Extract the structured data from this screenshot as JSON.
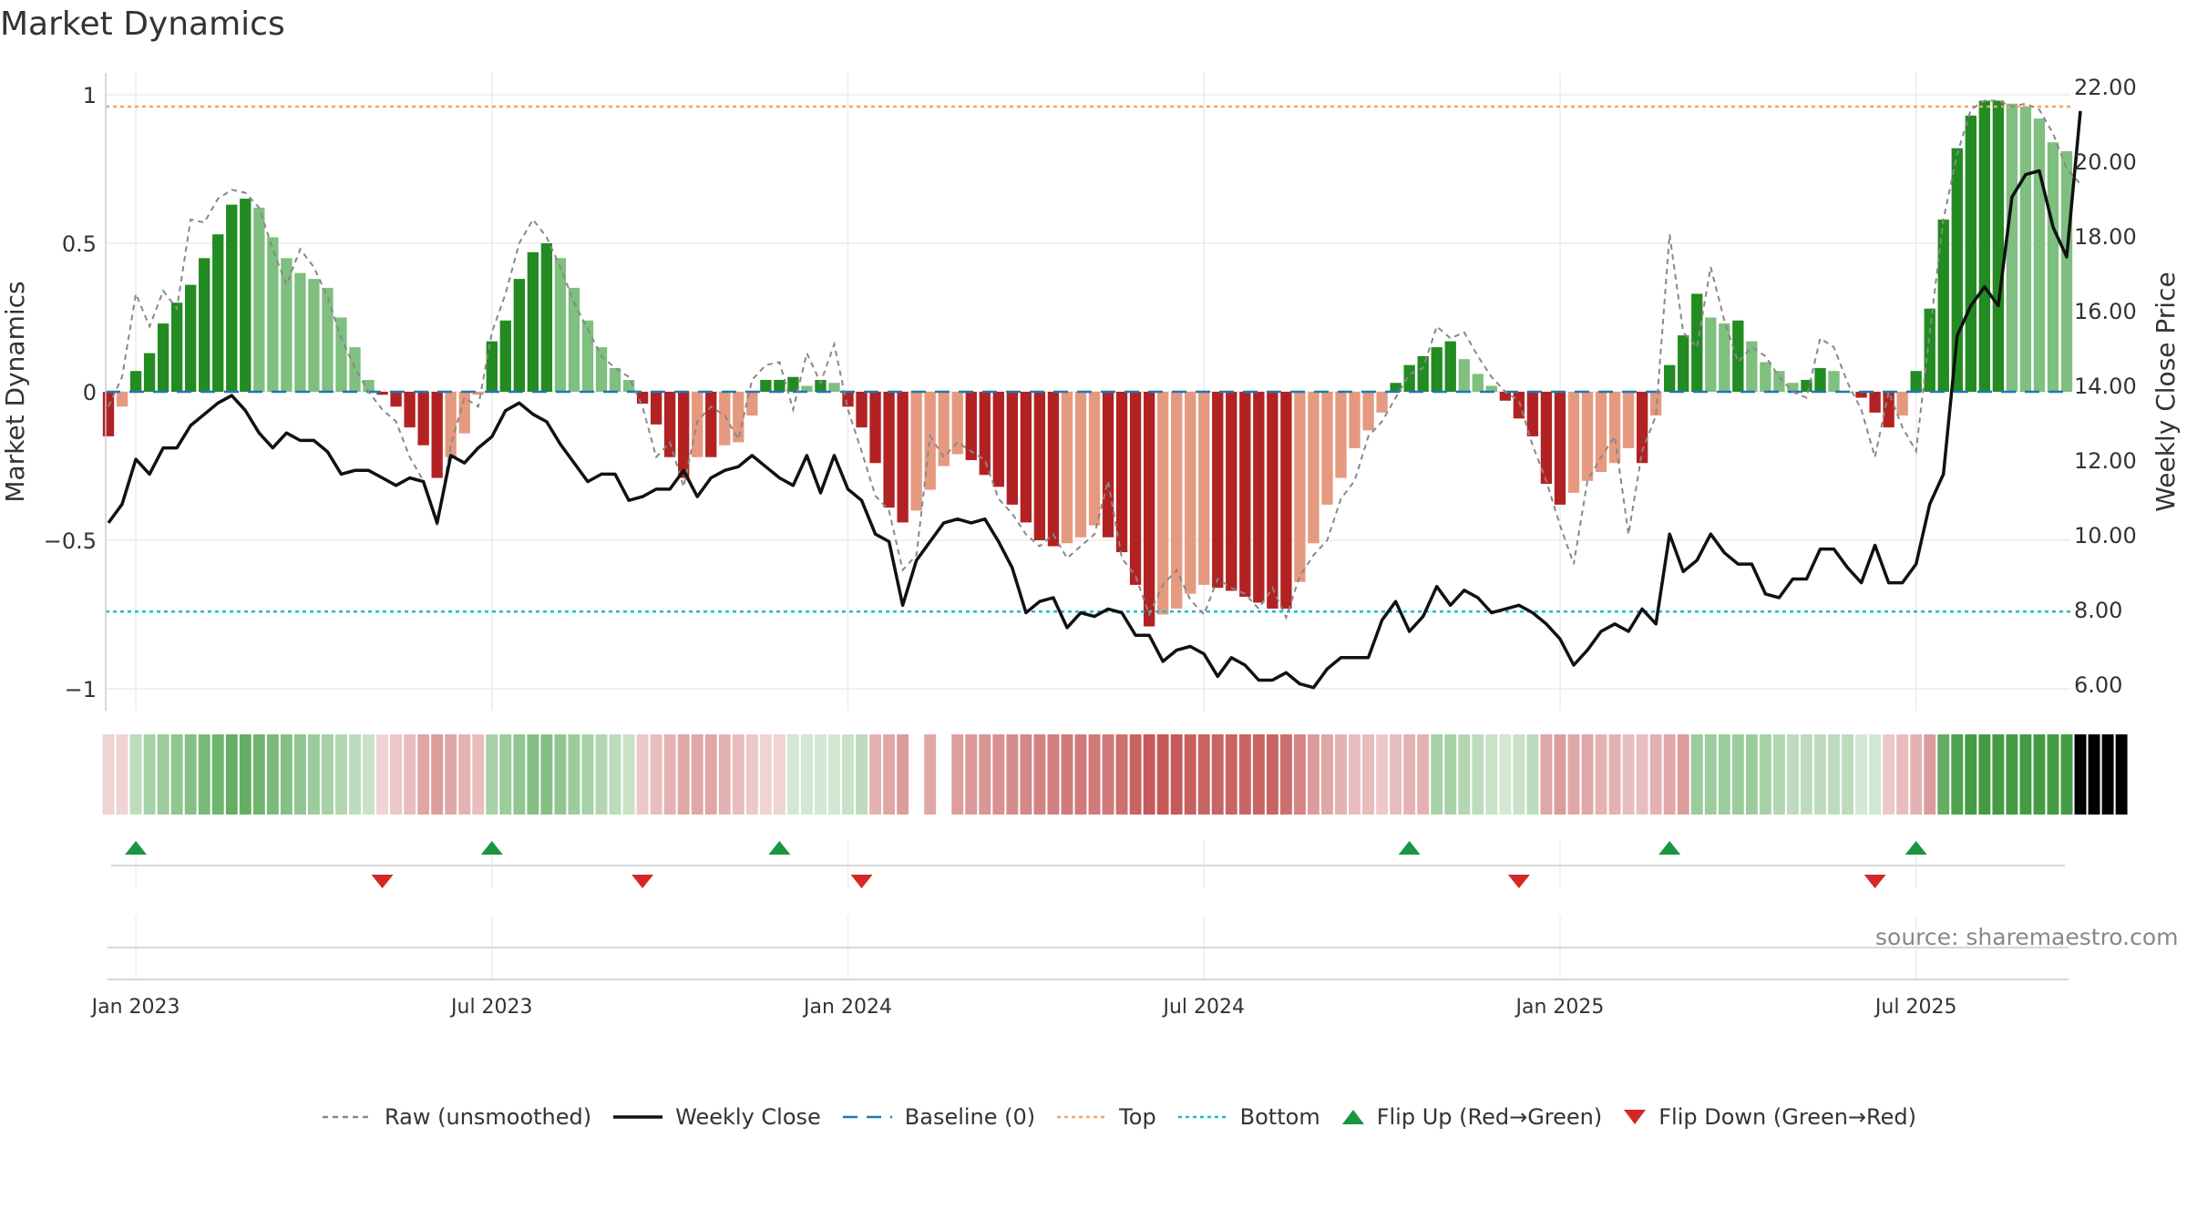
{
  "chart_data": {
    "type": "bar",
    "title": "Market Dynamics",
    "source": "source: sharemaestro.com",
    "ylabel_left": "Market Dynamics",
    "ylabel_right": "Weekly Close Price",
    "left_ticks": [
      {
        "v": 1,
        "label": "1"
      },
      {
        "v": 0.5,
        "label": "0.5"
      },
      {
        "v": 0,
        "label": "0"
      },
      {
        "v": -0.5,
        "label": "−0.5"
      },
      {
        "v": -1,
        "label": "−1"
      }
    ],
    "right_ticks": [
      "22.00",
      "20.00",
      "18.00",
      "16.00",
      "14.00",
      "12.00",
      "10.00",
      "8.00",
      "6.00"
    ],
    "ylim_left": [
      -1.05,
      1.05
    ],
    "ylim_right": [
      5.2,
      22.3
    ],
    "x_ticks": [
      {
        "label": "Jan 2023",
        "week": 2
      },
      {
        "label": "Jul 2023",
        "week": 28
      },
      {
        "label": "Jan 2024",
        "week": 54
      },
      {
        "label": "Jul 2024",
        "week": 80
      },
      {
        "label": "Jan 2025",
        "week": 106
      },
      {
        "label": "Jul 2025",
        "week": 132
      }
    ],
    "top_level": 0.96,
    "bottom_level": -0.74,
    "baseline": 0,
    "colors": {
      "strong_up": "#228b22",
      "weak_up": "#7fbf7f",
      "strong_down": "#b22222",
      "weak_down": "#e59a80",
      "price": "#111111",
      "raw": "#888888",
      "baseline": "#1f77b4",
      "top": "#f4a460",
      "bottom": "#17becf",
      "flip_up": "#1a9641",
      "flip_down": "#d62728"
    },
    "smoothed": [
      -0.15,
      -0.05,
      0.07,
      0.13,
      0.23,
      0.3,
      0.36,
      0.45,
      0.53,
      0.63,
      0.65,
      0.62,
      0.52,
      0.45,
      0.4,
      0.38,
      0.35,
      0.25,
      0.15,
      0.04,
      -0.01,
      -0.05,
      -0.12,
      -0.18,
      -0.29,
      -0.22,
      -0.14,
      -0.01,
      0.17,
      0.24,
      0.38,
      0.47,
      0.5,
      0.45,
      0.35,
      0.24,
      0.15,
      0.08,
      0.04,
      -0.04,
      -0.11,
      -0.22,
      -0.29,
      -0.22,
      -0.22,
      -0.18,
      -0.17,
      -0.08,
      0.04,
      0.04,
      0.05,
      0.02,
      0.04,
      0.03,
      -0.05,
      -0.12,
      -0.24,
      -0.39,
      -0.44,
      -0.4,
      -0.33,
      -0.25,
      -0.21,
      -0.23,
      -0.28,
      -0.32,
      -0.38,
      -0.44,
      -0.5,
      -0.52,
      -0.51,
      -0.49,
      -0.45,
      -0.49,
      -0.54,
      -0.65,
      -0.79,
      -0.75,
      -0.73,
      -0.68,
      -0.65,
      -0.66,
      -0.67,
      -0.69,
      -0.71,
      -0.73,
      -0.73,
      -0.64,
      -0.51,
      -0.38,
      -0.29,
      -0.19,
      -0.13,
      -0.07,
      0.03,
      0.09,
      0.12,
      0.15,
      0.17,
      0.11,
      0.06,
      0.02,
      -0.03,
      -0.09,
      -0.15,
      -0.31,
      -0.38,
      -0.34,
      -0.3,
      -0.27,
      -0.24,
      -0.19,
      -0.24,
      -0.08,
      0.09,
      0.19,
      0.33,
      0.25,
      0.23,
      0.24,
      0.17,
      0.1,
      0.07,
      0.03,
      0.04,
      0.08,
      0.07,
      0.0,
      -0.02,
      -0.07,
      -0.12,
      -0.08,
      0.07,
      0.28,
      0.58,
      0.82,
      0.93,
      0.98,
      0.98,
      0.97,
      0.96,
      0.92,
      0.84,
      0.81
    ],
    "raw": [
      -0.05,
      0.05,
      0.33,
      0.22,
      0.34,
      0.28,
      0.58,
      0.57,
      0.65,
      0.68,
      0.67,
      0.62,
      0.48,
      0.36,
      0.48,
      0.42,
      0.32,
      0.18,
      0.08,
      0.0,
      -0.06,
      -0.1,
      -0.22,
      -0.3,
      -0.45,
      -0.18,
      -0.02,
      -0.05,
      0.2,
      0.33,
      0.5,
      0.58,
      0.52,
      0.42,
      0.3,
      0.21,
      0.12,
      0.08,
      0.05,
      -0.05,
      -0.22,
      -0.17,
      -0.32,
      -0.1,
      -0.05,
      -0.08,
      -0.16,
      0.04,
      0.09,
      0.1,
      -0.06,
      0.13,
      0.03,
      0.16,
      -0.06,
      -0.2,
      -0.35,
      -0.4,
      -0.6,
      -0.55,
      -0.15,
      -0.22,
      -0.17,
      -0.2,
      -0.23,
      -0.36,
      -0.41,
      -0.48,
      -0.52,
      -0.48,
      -0.56,
      -0.52,
      -0.48,
      -0.3,
      -0.56,
      -0.62,
      -0.75,
      -0.65,
      -0.6,
      -0.7,
      -0.75,
      -0.63,
      -0.66,
      -0.68,
      -0.73,
      -0.66,
      -0.76,
      -0.62,
      -0.55,
      -0.5,
      -0.36,
      -0.3,
      -0.15,
      -0.1,
      -0.02,
      0.06,
      0.08,
      0.22,
      0.18,
      0.2,
      0.12,
      0.05,
      0.0,
      -0.03,
      -0.18,
      -0.3,
      -0.45,
      -0.58,
      -0.3,
      -0.22,
      -0.15,
      -0.48,
      -0.2,
      -0.08,
      0.53,
      0.2,
      0.15,
      0.42,
      0.24,
      0.1,
      0.15,
      0.12,
      0.05,
      0.0,
      -0.02,
      0.18,
      0.15,
      0.03,
      -0.06,
      -0.22,
      0.0,
      -0.12,
      -0.2,
      0.2,
      0.58,
      0.8,
      0.95,
      0.98,
      0.98,
      0.96,
      0.97,
      0.95,
      0.87,
      0.75,
      0.7
    ],
    "price": [
      10.5,
      11.0,
      12.2,
      11.8,
      12.5,
      12.5,
      13.1,
      13.4,
      13.7,
      13.9,
      13.5,
      12.9,
      12.5,
      12.9,
      12.7,
      12.7,
      12.4,
      11.8,
      11.9,
      11.9,
      11.7,
      11.5,
      11.7,
      11.6,
      10.5,
      12.3,
      12.1,
      12.5,
      12.8,
      13.5,
      13.7,
      13.4,
      13.2,
      12.6,
      12.1,
      11.6,
      11.8,
      11.8,
      11.1,
      11.2,
      11.4,
      11.4,
      11.9,
      11.2,
      11.7,
      11.9,
      12.0,
      12.3,
      12.0,
      11.7,
      11.5,
      12.3,
      11.3,
      12.3,
      11.4,
      11.1,
      10.2,
      10.0,
      8.3,
      9.5,
      10.0,
      10.5,
      10.6,
      10.5,
      10.6,
      10.0,
      9.3,
      8.1,
      8.4,
      8.5,
      7.7,
      8.1,
      8.0,
      8.2,
      8.1,
      7.5,
      7.5,
      6.8,
      7.1,
      7.2,
      7.0,
      6.4,
      6.9,
      6.7,
      6.3,
      6.3,
      6.5,
      6.2,
      6.1,
      6.6,
      6.9,
      6.9,
      6.9,
      7.9,
      8.4,
      7.6,
      8.0,
      8.8,
      8.3,
      8.7,
      8.5,
      8.1,
      8.2,
      8.3,
      8.1,
      7.8,
      7.4,
      6.7,
      7.1,
      7.6,
      7.8,
      7.6,
      8.2,
      7.8,
      10.2,
      9.2,
      9.5,
      10.2,
      9.7,
      9.4,
      9.4,
      8.6,
      8.5,
      9.0,
      9.0,
      9.8,
      9.8,
      9.3,
      8.9,
      9.9,
      8.9,
      8.9,
      9.4,
      11.0,
      11.8,
      15.5,
      16.3,
      16.8,
      16.3,
      19.2,
      19.8,
      19.9,
      18.4,
      17.6,
      21.5
    ],
    "heat_hue": [
      -1,
      -1,
      1,
      1,
      1,
      1,
      1,
      1,
      1,
      1,
      1,
      1,
      1,
      1,
      1,
      1,
      1,
      1,
      1,
      1,
      -1,
      -1,
      -1,
      -1,
      -1,
      -1,
      -1,
      -1,
      1,
      1,
      1,
      1,
      1,
      1,
      1,
      1,
      1,
      1,
      1,
      -1,
      -1,
      -1,
      -1,
      -1,
      -1,
      -1,
      -1,
      -1,
      -1,
      -1,
      1,
      1,
      1,
      1,
      1,
      1,
      -1,
      -1,
      -1,
      -1,
      -1,
      0,
      -1,
      -1,
      -1,
      -1,
      -1,
      -1,
      -1,
      -1,
      -1,
      -1,
      -1,
      -1,
      -1,
      -1,
      -1,
      -1,
      -1,
      -1,
      -1,
      -1,
      -1,
      -1,
      -1,
      -1,
      -1,
      -1,
      -1,
      -1,
      -1,
      -1,
      -1,
      -1,
      -1,
      -1,
      -1,
      1,
      1,
      1,
      1,
      1,
      1,
      1,
      1,
      -1,
      -1,
      -1,
      -1,
      -1,
      -1,
      -1,
      -1,
      -1,
      -1,
      -1,
      1,
      1,
      1,
      1,
      1,
      1,
      1,
      1,
      1,
      1,
      1,
      1,
      1,
      1,
      -1,
      -1,
      -1,
      -1,
      1,
      1,
      1,
      1,
      1,
      1,
      1,
      1,
      1,
      1,
      1,
      1,
      1,
      1
    ],
    "heat_level": [
      0.2,
      0.2,
      0.3,
      0.4,
      0.45,
      0.5,
      0.55,
      0.6,
      0.65,
      0.7,
      0.7,
      0.65,
      0.6,
      0.55,
      0.5,
      0.45,
      0.4,
      0.35,
      0.3,
      0.25,
      0.2,
      0.25,
      0.3,
      0.4,
      0.45,
      0.4,
      0.35,
      0.3,
      0.4,
      0.45,
      0.5,
      0.55,
      0.55,
      0.5,
      0.45,
      0.4,
      0.35,
      0.3,
      0.25,
      0.25,
      0.3,
      0.35,
      0.4,
      0.4,
      0.4,
      0.35,
      0.3,
      0.25,
      0.2,
      0.2,
      0.2,
      0.2,
      0.2,
      0.2,
      0.25,
      0.3,
      0.35,
      0.4,
      0.45,
      0.0,
      0.4,
      0.42,
      0.44,
      0.46,
      0.48,
      0.5,
      0.52,
      0.54,
      0.56,
      0.58,
      0.6,
      0.6,
      0.6,
      0.6,
      0.65,
      0.7,
      0.75,
      0.75,
      0.75,
      0.72,
      0.7,
      0.7,
      0.7,
      0.7,
      0.7,
      0.7,
      0.65,
      0.55,
      0.45,
      0.4,
      0.35,
      0.3,
      0.3,
      0.25,
      0.3,
      0.35,
      0.35,
      0.4,
      0.4,
      0.35,
      0.3,
      0.25,
      0.2,
      0.25,
      0.3,
      0.4,
      0.45,
      0.4,
      0.4,
      0.35,
      0.35,
      0.3,
      0.3,
      0.35,
      0.4,
      0.45,
      0.45,
      0.45,
      0.45,
      0.45,
      0.45,
      0.4,
      0.35,
      0.3,
      0.3,
      0.3,
      0.3,
      0.3,
      0.2,
      0.2,
      0.25,
      0.3,
      0.35,
      0.45,
      0.7,
      0.8,
      0.85,
      0.85,
      0.85,
      0.85,
      0.85,
      0.85,
      0.85,
      0.85
    ],
    "flips_up_weeks": [
      2,
      28,
      49,
      95,
      114,
      132
    ],
    "flips_down_weeks": [
      20,
      39,
      55,
      103,
      129
    ],
    "legend": [
      {
        "label": "Raw (unsmoothed)",
        "kind": "dash-line",
        "color": "#888888"
      },
      {
        "label": "Weekly Close",
        "kind": "solid-line",
        "color": "#111111"
      },
      {
        "label": "Baseline (0)",
        "kind": "long-dash",
        "color": "#1f77b4"
      },
      {
        "label": "Top",
        "kind": "dot-line",
        "color": "#f4a460"
      },
      {
        "label": "Bottom",
        "kind": "dot-line",
        "color": "#17becf"
      },
      {
        "label": "Flip Up (Red→Green)",
        "kind": "triangle-up",
        "color": "#1a9641"
      },
      {
        "label": "Flip Down (Green→Red)",
        "kind": "triangle-down",
        "color": "#d62728"
      }
    ]
  }
}
